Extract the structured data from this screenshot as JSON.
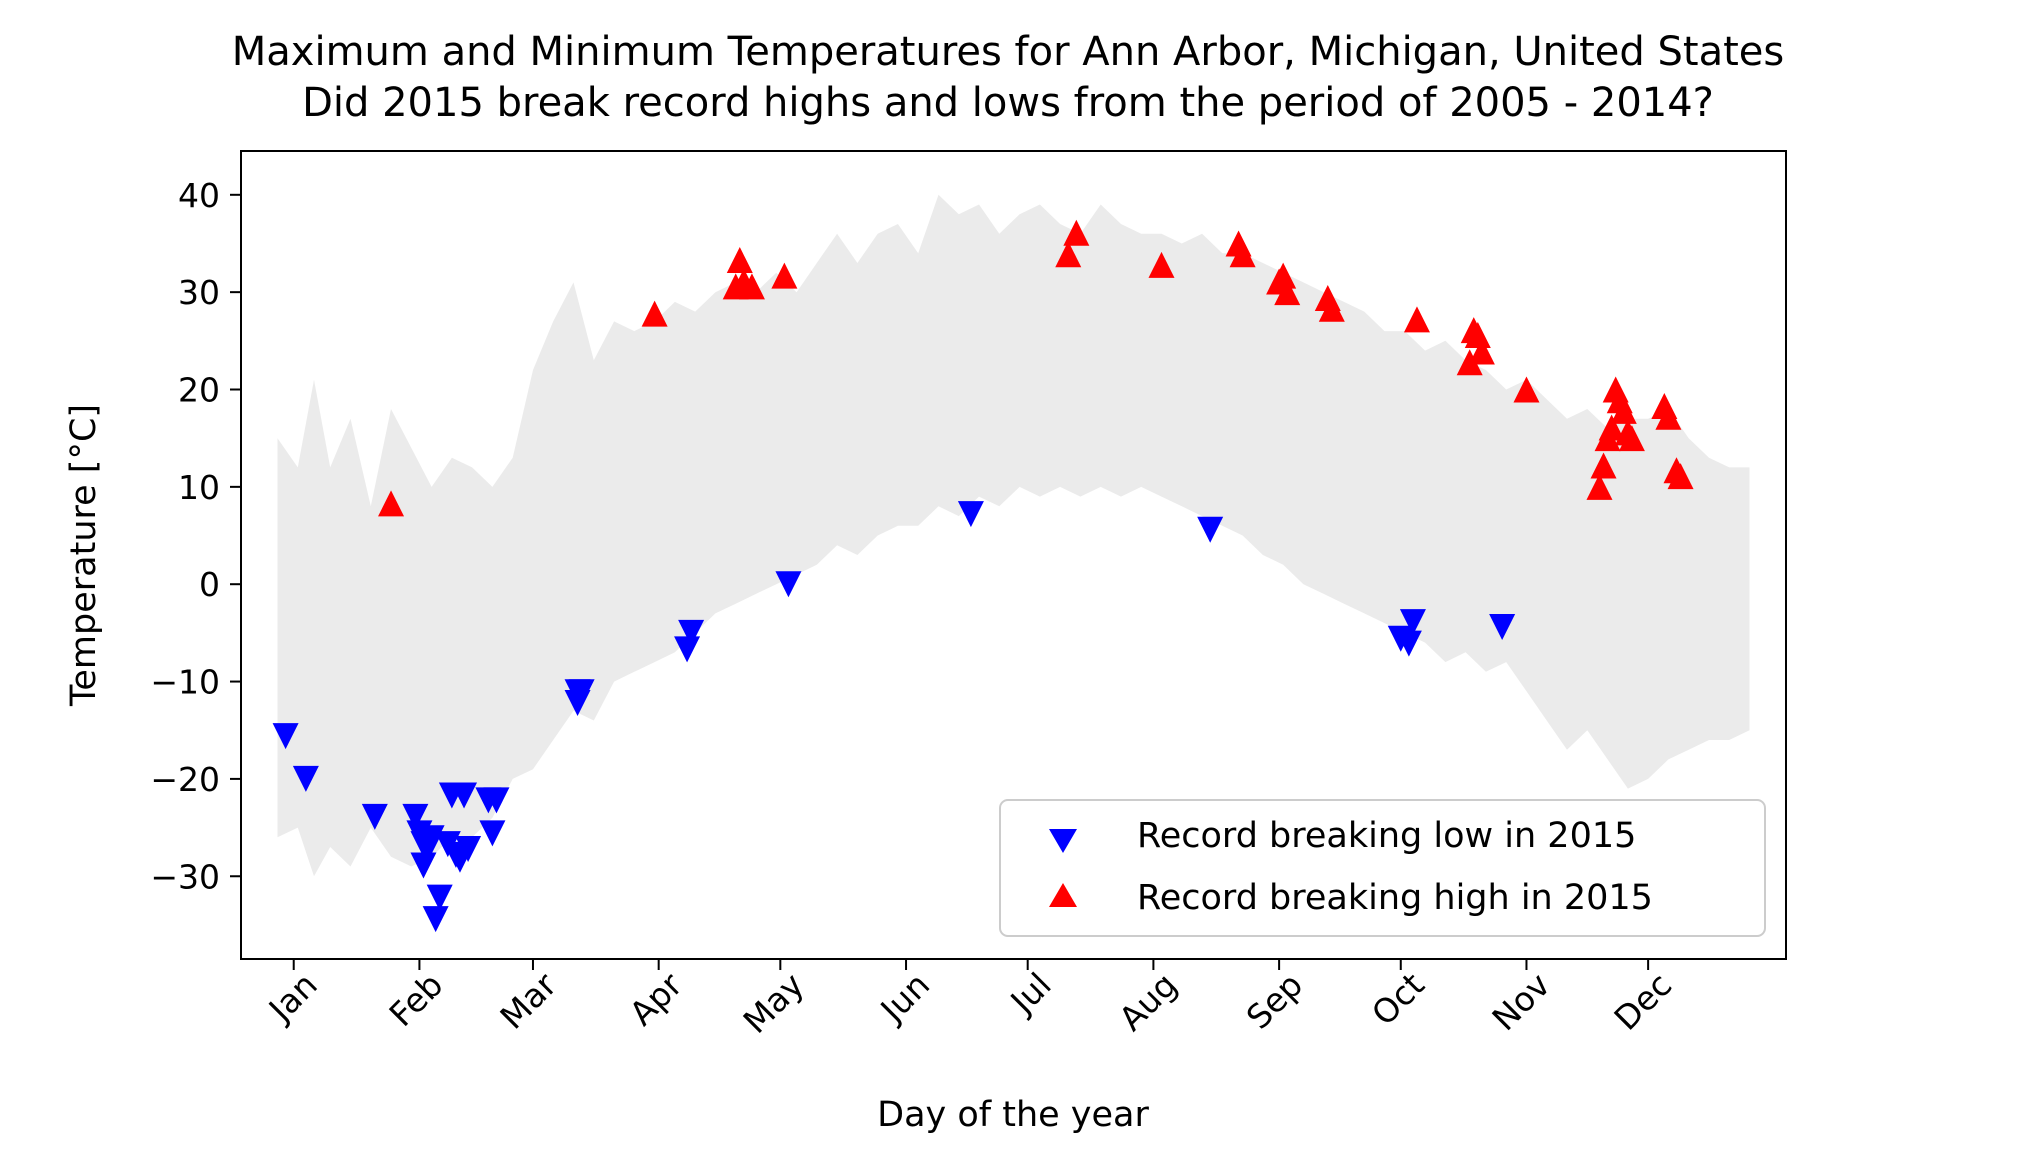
{
  "chart_data": {
    "type": "scatter",
    "title": "Maximum and Minimum Temperatures for Ann Arbor, Michigan, United States",
    "subtitle": "Did 2015 break record highs and lows from the period of 2005 - 2014?",
    "xlabel": "Day of the year",
    "ylabel": "Temperature [°C]",
    "xlim": [
      "2014-12-19",
      "2016-01-04"
    ],
    "ylim": [
      -38.5,
      44.5
    ],
    "x_ticks": [
      {
        "date": "2015-01-01",
        "label": "Jan"
      },
      {
        "date": "2015-02-01",
        "label": "Feb"
      },
      {
        "date": "2015-03-01",
        "label": "Mar"
      },
      {
        "date": "2015-04-01",
        "label": "Apr"
      },
      {
        "date": "2015-05-01",
        "label": "May"
      },
      {
        "date": "2015-06-01",
        "label": "Jun"
      },
      {
        "date": "2015-07-01",
        "label": "Jul"
      },
      {
        "date": "2015-08-01",
        "label": "Aug"
      },
      {
        "date": "2015-09-01",
        "label": "Sep"
      },
      {
        "date": "2015-10-01",
        "label": "Oct"
      },
      {
        "date": "2015-11-01",
        "label": "Nov"
      },
      {
        "date": "2015-12-01",
        "label": "Dec"
      }
    ],
    "y_ticks": [
      {
        "value": 40,
        "label": "40"
      },
      {
        "value": 30,
        "label": "30"
      },
      {
        "value": 20,
        "label": "20"
      },
      {
        "value": 10,
        "label": "10"
      },
      {
        "value": 0,
        "label": "0"
      },
      {
        "value": -10,
        "label": "−10"
      },
      {
        "value": -20,
        "label": "−20"
      },
      {
        "value": -30,
        "label": "−30"
      }
    ],
    "grid": false,
    "legend_position": "lower-right",
    "band": {
      "color": "#ebebeb",
      "upper": [
        {
          "x": "2014-12-28",
          "y": 15
        },
        {
          "x": "2015-01-02",
          "y": 12
        },
        {
          "x": "2015-01-06",
          "y": 21
        },
        {
          "x": "2015-01-10",
          "y": 12
        },
        {
          "x": "2015-01-15",
          "y": 17
        },
        {
          "x": "2015-01-20",
          "y": 8
        },
        {
          "x": "2015-01-25",
          "y": 18
        },
        {
          "x": "2015-01-30",
          "y": 14
        },
        {
          "x": "2015-02-04",
          "y": 10
        },
        {
          "x": "2015-02-09",
          "y": 13
        },
        {
          "x": "2015-02-14",
          "y": 12
        },
        {
          "x": "2015-02-19",
          "y": 10
        },
        {
          "x": "2015-02-24",
          "y": 13
        },
        {
          "x": "2015-03-01",
          "y": 22
        },
        {
          "x": "2015-03-06",
          "y": 27
        },
        {
          "x": "2015-03-11",
          "y": 31
        },
        {
          "x": "2015-03-16",
          "y": 23
        },
        {
          "x": "2015-03-21",
          "y": 27
        },
        {
          "x": "2015-03-26",
          "y": 26
        },
        {
          "x": "2015-03-31",
          "y": 27
        },
        {
          "x": "2015-04-05",
          "y": 29
        },
        {
          "x": "2015-04-10",
          "y": 28
        },
        {
          "x": "2015-04-15",
          "y": 30
        },
        {
          "x": "2015-04-20",
          "y": 31
        },
        {
          "x": "2015-04-25",
          "y": 30
        },
        {
          "x": "2015-04-30",
          "y": 32
        },
        {
          "x": "2015-05-05",
          "y": 30
        },
        {
          "x": "2015-05-10",
          "y": 33
        },
        {
          "x": "2015-05-15",
          "y": 36
        },
        {
          "x": "2015-05-20",
          "y": 33
        },
        {
          "x": "2015-05-25",
          "y": 36
        },
        {
          "x": "2015-05-30",
          "y": 37
        },
        {
          "x": "2015-06-04",
          "y": 34
        },
        {
          "x": "2015-06-09",
          "y": 40
        },
        {
          "x": "2015-06-14",
          "y": 38
        },
        {
          "x": "2015-06-19",
          "y": 39
        },
        {
          "x": "2015-06-24",
          "y": 36
        },
        {
          "x": "2015-06-29",
          "y": 38
        },
        {
          "x": "2015-07-04",
          "y": 39
        },
        {
          "x": "2015-07-09",
          "y": 37
        },
        {
          "x": "2015-07-14",
          "y": 36
        },
        {
          "x": "2015-07-19",
          "y": 39
        },
        {
          "x": "2015-07-24",
          "y": 37
        },
        {
          "x": "2015-07-29",
          "y": 36
        },
        {
          "x": "2015-08-03",
          "y": 36
        },
        {
          "x": "2015-08-08",
          "y": 35
        },
        {
          "x": "2015-08-13",
          "y": 36
        },
        {
          "x": "2015-08-18",
          "y": 34
        },
        {
          "x": "2015-08-23",
          "y": 34
        },
        {
          "x": "2015-08-28",
          "y": 33
        },
        {
          "x": "2015-09-02",
          "y": 32
        },
        {
          "x": "2015-09-07",
          "y": 31
        },
        {
          "x": "2015-09-12",
          "y": 30
        },
        {
          "x": "2015-09-17",
          "y": 29
        },
        {
          "x": "2015-09-22",
          "y": 28
        },
        {
          "x": "2015-09-27",
          "y": 26
        },
        {
          "x": "2015-10-02",
          "y": 26
        },
        {
          "x": "2015-10-07",
          "y": 24
        },
        {
          "x": "2015-10-12",
          "y": 25
        },
        {
          "x": "2015-10-17",
          "y": 23
        },
        {
          "x": "2015-10-22",
          "y": 22
        },
        {
          "x": "2015-10-27",
          "y": 20
        },
        {
          "x": "2015-11-01",
          "y": 21
        },
        {
          "x": "2015-11-06",
          "y": 19
        },
        {
          "x": "2015-11-11",
          "y": 17
        },
        {
          "x": "2015-11-16",
          "y": 18
        },
        {
          "x": "2015-11-21",
          "y": 16
        },
        {
          "x": "2015-11-26",
          "y": 17
        },
        {
          "x": "2015-12-01",
          "y": 17
        },
        {
          "x": "2015-12-06",
          "y": 18
        },
        {
          "x": "2015-12-11",
          "y": 15
        },
        {
          "x": "2015-12-16",
          "y": 13
        },
        {
          "x": "2015-12-21",
          "y": 12
        },
        {
          "x": "2015-12-26",
          "y": 12
        }
      ],
      "lower": [
        {
          "x": "2014-12-28",
          "y": -26
        },
        {
          "x": "2015-01-02",
          "y": -25
        },
        {
          "x": "2015-01-06",
          "y": -30
        },
        {
          "x": "2015-01-10",
          "y": -27
        },
        {
          "x": "2015-01-15",
          "y": -29
        },
        {
          "x": "2015-01-20",
          "y": -25
        },
        {
          "x": "2015-01-25",
          "y": -28
        },
        {
          "x": "2015-01-30",
          "y": -29
        },
        {
          "x": "2015-02-04",
          "y": -28
        },
        {
          "x": "2015-02-09",
          "y": -26
        },
        {
          "x": "2015-02-14",
          "y": -26
        },
        {
          "x": "2015-02-19",
          "y": -24
        },
        {
          "x": "2015-02-24",
          "y": -20
        },
        {
          "x": "2015-03-01",
          "y": -19
        },
        {
          "x": "2015-03-06",
          "y": -16
        },
        {
          "x": "2015-03-11",
          "y": -13
        },
        {
          "x": "2015-03-16",
          "y": -14
        },
        {
          "x": "2015-03-21",
          "y": -10
        },
        {
          "x": "2015-03-26",
          "y": -9
        },
        {
          "x": "2015-03-31",
          "y": -8
        },
        {
          "x": "2015-04-05",
          "y": -7
        },
        {
          "x": "2015-04-10",
          "y": -5
        },
        {
          "x": "2015-04-15",
          "y": -3
        },
        {
          "x": "2015-04-20",
          "y": -2
        },
        {
          "x": "2015-04-25",
          "y": -1
        },
        {
          "x": "2015-04-30",
          "y": 0
        },
        {
          "x": "2015-05-05",
          "y": 1
        },
        {
          "x": "2015-05-10",
          "y": 2
        },
        {
          "x": "2015-05-15",
          "y": 4
        },
        {
          "x": "2015-05-20",
          "y": 3
        },
        {
          "x": "2015-05-25",
          "y": 5
        },
        {
          "x": "2015-05-30",
          "y": 6
        },
        {
          "x": "2015-06-04",
          "y": 6
        },
        {
          "x": "2015-06-09",
          "y": 8
        },
        {
          "x": "2015-06-14",
          "y": 7
        },
        {
          "x": "2015-06-19",
          "y": 9
        },
        {
          "x": "2015-06-24",
          "y": 8
        },
        {
          "x": "2015-06-29",
          "y": 10
        },
        {
          "x": "2015-07-04",
          "y": 9
        },
        {
          "x": "2015-07-09",
          "y": 10
        },
        {
          "x": "2015-07-14",
          "y": 9
        },
        {
          "x": "2015-07-19",
          "y": 10
        },
        {
          "x": "2015-07-24",
          "y": 9
        },
        {
          "x": "2015-07-29",
          "y": 10
        },
        {
          "x": "2015-08-03",
          "y": 9
        },
        {
          "x": "2015-08-08",
          "y": 8
        },
        {
          "x": "2015-08-13",
          "y": 7
        },
        {
          "x": "2015-08-18",
          "y": 6
        },
        {
          "x": "2015-08-23",
          "y": 5
        },
        {
          "x": "2015-08-28",
          "y": 3
        },
        {
          "x": "2015-09-02",
          "y": 2
        },
        {
          "x": "2015-09-07",
          "y": 0
        },
        {
          "x": "2015-09-12",
          "y": -1
        },
        {
          "x": "2015-09-17",
          "y": -2
        },
        {
          "x": "2015-09-22",
          "y": -3
        },
        {
          "x": "2015-09-27",
          "y": -4
        },
        {
          "x": "2015-10-02",
          "y": -5
        },
        {
          "x": "2015-10-07",
          "y": -6
        },
        {
          "x": "2015-10-12",
          "y": -8
        },
        {
          "x": "2015-10-17",
          "y": -7
        },
        {
          "x": "2015-10-22",
          "y": -9
        },
        {
          "x": "2015-10-27",
          "y": -8
        },
        {
          "x": "2015-11-01",
          "y": -11
        },
        {
          "x": "2015-11-06",
          "y": -14
        },
        {
          "x": "2015-11-11",
          "y": -17
        },
        {
          "x": "2015-11-16",
          "y": -15
        },
        {
          "x": "2015-11-21",
          "y": -18
        },
        {
          "x": "2015-11-26",
          "y": -21
        },
        {
          "x": "2015-12-01",
          "y": -20
        },
        {
          "x": "2015-12-06",
          "y": -18
        },
        {
          "x": "2015-12-11",
          "y": -17
        },
        {
          "x": "2015-12-16",
          "y": -16
        },
        {
          "x": "2015-12-21",
          "y": -16
        },
        {
          "x": "2015-12-26",
          "y": -15
        }
      ]
    },
    "series": [
      {
        "name": "Record breaking low in 2015",
        "color": "#0000ff",
        "marker": "triangle-down",
        "points": [
          {
            "x": "2014-12-30",
            "y": -15.6
          },
          {
            "x": "2015-01-04",
            "y": -20.0
          },
          {
            "x": "2015-01-21",
            "y": -23.9
          },
          {
            "x": "2015-01-31",
            "y": -23.9
          },
          {
            "x": "2015-02-01",
            "y": -25.6
          },
          {
            "x": "2015-02-02",
            "y": -26.7
          },
          {
            "x": "2015-02-02",
            "y": -28.9
          },
          {
            "x": "2015-02-03",
            "y": -27.2
          },
          {
            "x": "2015-02-04",
            "y": -26.1
          },
          {
            "x": "2015-02-05",
            "y": -34.4
          },
          {
            "x": "2015-02-06",
            "y": -32.2
          },
          {
            "x": "2015-02-08",
            "y": -26.7
          },
          {
            "x": "2015-02-09",
            "y": -21.7
          },
          {
            "x": "2015-02-10",
            "y": -27.8
          },
          {
            "x": "2015-02-11",
            "y": -28.3
          },
          {
            "x": "2015-02-12",
            "y": -21.7
          },
          {
            "x": "2015-02-13",
            "y": -27.2
          },
          {
            "x": "2015-02-18",
            "y": -22.2
          },
          {
            "x": "2015-02-19",
            "y": -25.6
          },
          {
            "x": "2015-02-20",
            "y": -22.2
          },
          {
            "x": "2015-03-12",
            "y": -11.1
          },
          {
            "x": "2015-03-12",
            "y": -12.2
          },
          {
            "x": "2015-03-13",
            "y": -11.1
          },
          {
            "x": "2015-04-08",
            "y": -6.7
          },
          {
            "x": "2015-04-09",
            "y": -5.0
          },
          {
            "x": "2015-05-03",
            "y": 0.0
          },
          {
            "x": "2015-06-17",
            "y": 7.2
          },
          {
            "x": "2015-08-15",
            "y": 5.6
          },
          {
            "x": "2015-10-01",
            "y": -5.6
          },
          {
            "x": "2015-10-03",
            "y": -6.1
          },
          {
            "x": "2015-10-04",
            "y": -3.9
          },
          {
            "x": "2015-10-26",
            "y": -4.4
          }
        ]
      },
      {
        "name": "Record breaking high in 2015",
        "color": "#ff0000",
        "marker": "triangle-up",
        "points": [
          {
            "x": "2015-01-25",
            "y": 8.3
          },
          {
            "x": "2015-03-31",
            "y": 27.8
          },
          {
            "x": "2015-04-20",
            "y": 30.6
          },
          {
            "x": "2015-04-21",
            "y": 33.3
          },
          {
            "x": "2015-04-22",
            "y": 31.1
          },
          {
            "x": "2015-04-24",
            "y": 30.6
          },
          {
            "x": "2015-05-02",
            "y": 31.7
          },
          {
            "x": "2015-07-11",
            "y": 33.9
          },
          {
            "x": "2015-07-13",
            "y": 36.1
          },
          {
            "x": "2015-08-03",
            "y": 32.8
          },
          {
            "x": "2015-08-22",
            "y": 35.0
          },
          {
            "x": "2015-08-23",
            "y": 33.9
          },
          {
            "x": "2015-09-01",
            "y": 31.1
          },
          {
            "x": "2015-09-02",
            "y": 31.7
          },
          {
            "x": "2015-09-03",
            "y": 30.0
          },
          {
            "x": "2015-09-13",
            "y": 29.4
          },
          {
            "x": "2015-09-14",
            "y": 28.3
          },
          {
            "x": "2015-10-05",
            "y": 27.2
          },
          {
            "x": "2015-10-18",
            "y": 22.8
          },
          {
            "x": "2015-10-19",
            "y": 26.1
          },
          {
            "x": "2015-10-20",
            "y": 25.6
          },
          {
            "x": "2015-10-21",
            "y": 23.9
          },
          {
            "x": "2015-11-01",
            "y": 20.0
          },
          {
            "x": "2015-11-19",
            "y": 10.0
          },
          {
            "x": "2015-11-20",
            "y": 12.2
          },
          {
            "x": "2015-11-21",
            "y": 15.0
          },
          {
            "x": "2015-11-22",
            "y": 16.1
          },
          {
            "x": "2015-11-23",
            "y": 20.0
          },
          {
            "x": "2015-11-24",
            "y": 18.9
          },
          {
            "x": "2015-11-25",
            "y": 17.8
          },
          {
            "x": "2015-11-26",
            "y": 15.6
          },
          {
            "x": "2015-11-27",
            "y": 15.0
          },
          {
            "x": "2015-12-05",
            "y": 18.3
          },
          {
            "x": "2015-12-06",
            "y": 17.2
          },
          {
            "x": "2015-12-08",
            "y": 11.7
          },
          {
            "x": "2015-12-09",
            "y": 11.1
          }
        ]
      }
    ]
  }
}
